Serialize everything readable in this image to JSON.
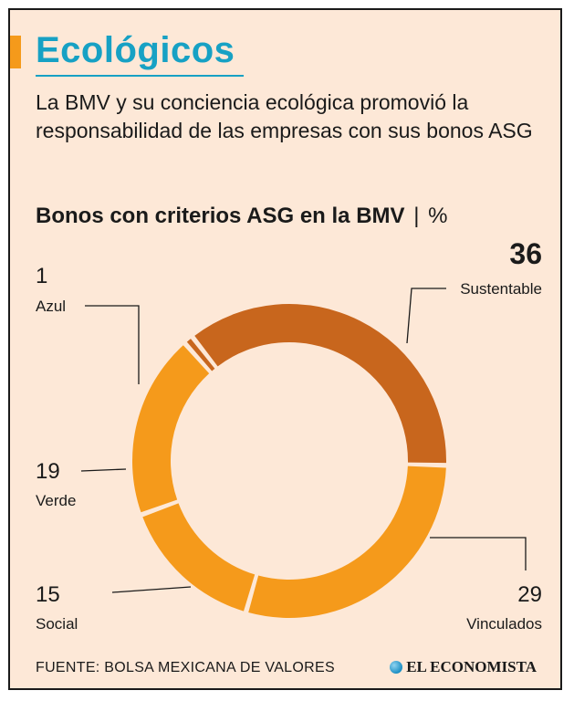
{
  "header": {
    "title": "Ecológicos",
    "subtitle": "La BMV y su conciencia ecológica  promovió la responsabilidad de las empresas con sus bonos ASG",
    "chart_title": "Bonos con criterios ASG en la BMV",
    "chart_separator": "|",
    "chart_unit": "%"
  },
  "colors": {
    "background": "#fde8d7",
    "title": "#17a1c4",
    "accent": "#f59a1b",
    "dark_slice": "#c8661d",
    "light_slice": "#f59a1b"
  },
  "chart_data": {
    "type": "pie",
    "donut": true,
    "title": "Bonos con criterios ASG en la BMV",
    "unit": "%",
    "legend": "none",
    "slices": [
      {
        "label": "Sustentable",
        "value": 36,
        "color": "#c8661d",
        "value_display": "36"
      },
      {
        "label": "Vinculados",
        "value": 29,
        "color": "#f59a1b",
        "value_display": "29"
      },
      {
        "label": "Social",
        "value": 15,
        "color": "#f59a1b",
        "value_display": "15"
      },
      {
        "label": "Verde",
        "value": 19,
        "color": "#f59a1b",
        "value_display": "19"
      },
      {
        "label": "Azul",
        "value": 1,
        "color": "#c8661d",
        "value_display": "1"
      }
    ]
  },
  "footer": {
    "source": "FUENTE: BOLSA MEXICANA DE VALORES",
    "brand": "EL ECONOMISTA",
    "brand_icon": "globe-icon"
  }
}
